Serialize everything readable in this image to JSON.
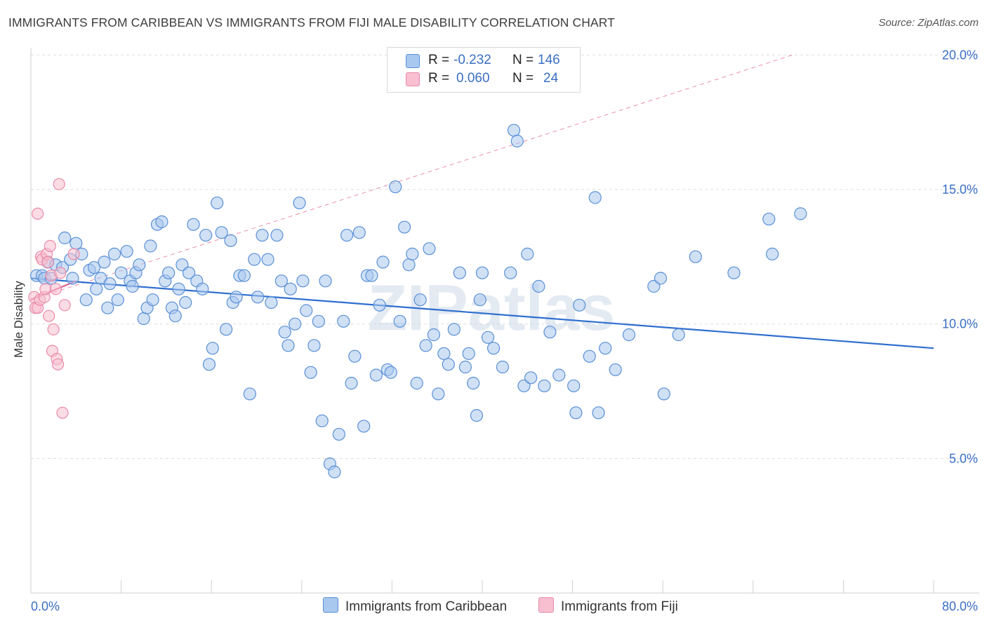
{
  "header": {
    "title": "IMMIGRANTS FROM CARIBBEAN VS IMMIGRANTS FROM FIJI MALE DISABILITY CORRELATION CHART",
    "source": "Source: ZipAtlas.com"
  },
  "legend": {
    "series": [
      {
        "r_label": "R =",
        "r_value": "-0.232",
        "n_label": "N =",
        "n_value": "146"
      },
      {
        "r_label": "R =",
        "r_value": "0.060",
        "n_label": "N =",
        "n_value": "24"
      }
    ]
  },
  "bottom_legend": [
    "Immigrants from Caribbean",
    "Immigrants from Fiji"
  ],
  "watermark": "ZIPatlas",
  "colors": {
    "caribbean_fill": "#a9c8ef",
    "caribbean_stroke": "#5a8fd6",
    "caribbean_line": "#2f6fcf",
    "fiji_fill": "#f7bfd0",
    "fiji_stroke": "#e98aa9",
    "fiji_line": "#e0608e",
    "axis_text": "#3a6fc4",
    "grid": "#dddddd"
  },
  "chart_data": {
    "type": "scatter",
    "ylabel": "Male Disability",
    "xlim": [
      0,
      80
    ],
    "ylim": [
      0,
      21
    ],
    "x_tick_labels": [
      {
        "value": 0,
        "label": "0.0%"
      },
      {
        "value": 80,
        "label": "80.0%"
      }
    ],
    "y_tick_labels": [
      {
        "value": 5,
        "label": "5.0%"
      },
      {
        "value": 10,
        "label": "10.0%"
      },
      {
        "value": 15,
        "label": "15.0%"
      },
      {
        "value": 20,
        "label": "20.0%"
      }
    ],
    "grid": "horizontal dashed",
    "series": [
      {
        "name": "Immigrants from Caribbean",
        "trend": {
          "x": [
            0,
            80
          ],
          "y": [
            11.7,
            9.1
          ]
        },
        "points": [
          [
            0.5,
            11.8
          ],
          [
            1.0,
            11.8
          ],
          [
            1.2,
            11.7
          ],
          [
            1.5,
            12.3
          ],
          [
            1.8,
            11.7
          ],
          [
            2.2,
            12.2
          ],
          [
            2.8,
            12.1
          ],
          [
            3.0,
            13.2
          ],
          [
            3.5,
            12.4
          ],
          [
            3.7,
            11.7
          ],
          [
            4.0,
            13.0
          ],
          [
            4.5,
            12.6
          ],
          [
            4.9,
            10.9
          ],
          [
            5.2,
            12.0
          ],
          [
            5.6,
            12.1
          ],
          [
            5.8,
            11.3
          ],
          [
            6.2,
            11.7
          ],
          [
            6.5,
            12.3
          ],
          [
            6.8,
            10.6
          ],
          [
            7.0,
            11.5
          ],
          [
            7.4,
            12.6
          ],
          [
            7.7,
            10.9
          ],
          [
            8.0,
            11.9
          ],
          [
            8.5,
            12.7
          ],
          [
            8.8,
            11.6
          ],
          [
            9.0,
            11.4
          ],
          [
            9.3,
            11.9
          ],
          [
            9.6,
            12.2
          ],
          [
            10.0,
            10.2
          ],
          [
            10.3,
            10.6
          ],
          [
            10.6,
            12.9
          ],
          [
            10.8,
            10.9
          ],
          [
            11.2,
            13.7
          ],
          [
            11.6,
            13.8
          ],
          [
            11.9,
            11.6
          ],
          [
            12.2,
            11.9
          ],
          [
            12.5,
            10.6
          ],
          [
            12.8,
            10.3
          ],
          [
            13.1,
            11.3
          ],
          [
            13.4,
            12.2
          ],
          [
            13.7,
            10.8
          ],
          [
            14.0,
            11.9
          ],
          [
            14.4,
            13.7
          ],
          [
            14.7,
            11.6
          ],
          [
            15.2,
            11.3
          ],
          [
            15.5,
            13.3
          ],
          [
            15.8,
            8.5
          ],
          [
            16.1,
            9.1
          ],
          [
            16.5,
            14.5
          ],
          [
            16.9,
            13.4
          ],
          [
            17.3,
            9.8
          ],
          [
            17.7,
            13.1
          ],
          [
            17.9,
            10.8
          ],
          [
            18.2,
            11.0
          ],
          [
            18.5,
            11.8
          ],
          [
            18.9,
            11.8
          ],
          [
            19.4,
            7.4
          ],
          [
            19.8,
            12.4
          ],
          [
            20.1,
            11.0
          ],
          [
            20.5,
            13.3
          ],
          [
            21.0,
            12.4
          ],
          [
            21.3,
            10.8
          ],
          [
            21.8,
            13.3
          ],
          [
            22.2,
            11.6
          ],
          [
            22.5,
            9.7
          ],
          [
            22.8,
            9.2
          ],
          [
            23.0,
            11.3
          ],
          [
            23.4,
            10.0
          ],
          [
            23.8,
            14.5
          ],
          [
            24.1,
            11.6
          ],
          [
            24.4,
            10.5
          ],
          [
            24.8,
            8.2
          ],
          [
            25.1,
            9.2
          ],
          [
            25.5,
            10.1
          ],
          [
            25.8,
            6.4
          ],
          [
            26.1,
            11.6
          ],
          [
            26.5,
            4.8
          ],
          [
            26.9,
            4.5
          ],
          [
            27.3,
            5.9
          ],
          [
            27.7,
            10.1
          ],
          [
            28.0,
            13.3
          ],
          [
            28.4,
            7.8
          ],
          [
            28.7,
            8.8
          ],
          [
            29.1,
            13.4
          ],
          [
            29.5,
            6.2
          ],
          [
            29.8,
            11.8
          ],
          [
            30.2,
            11.8
          ],
          [
            30.6,
            8.1
          ],
          [
            30.9,
            10.7
          ],
          [
            31.2,
            12.3
          ],
          [
            31.6,
            8.3
          ],
          [
            31.9,
            8.2
          ],
          [
            32.3,
            15.1
          ],
          [
            32.7,
            10.1
          ],
          [
            33.1,
            13.6
          ],
          [
            33.5,
            12.2
          ],
          [
            33.8,
            12.6
          ],
          [
            34.2,
            7.8
          ],
          [
            34.5,
            10.9
          ],
          [
            35.0,
            9.2
          ],
          [
            35.3,
            12.8
          ],
          [
            35.7,
            9.6
          ],
          [
            36.1,
            7.4
          ],
          [
            36.6,
            8.9
          ],
          [
            37.0,
            8.5
          ],
          [
            37.5,
            9.8
          ],
          [
            38.0,
            11.9
          ],
          [
            38.5,
            8.4
          ],
          [
            38.8,
            8.9
          ],
          [
            39.2,
            7.8
          ],
          [
            39.5,
            6.6
          ],
          [
            39.8,
            10.9
          ],
          [
            40.0,
            11.9
          ],
          [
            40.5,
            9.5
          ],
          [
            41.0,
            9.1
          ],
          [
            41.8,
            8.4
          ],
          [
            42.5,
            11.9
          ],
          [
            42.8,
            17.2
          ],
          [
            43.1,
            16.8
          ],
          [
            43.7,
            7.7
          ],
          [
            44.0,
            12.6
          ],
          [
            44.3,
            8.0
          ],
          [
            45.0,
            11.4
          ],
          [
            45.5,
            7.7
          ],
          [
            46.0,
            9.7
          ],
          [
            46.8,
            8.1
          ],
          [
            48.1,
            7.7
          ],
          [
            48.3,
            6.7
          ],
          [
            48.6,
            10.7
          ],
          [
            49.5,
            8.8
          ],
          [
            50.0,
            14.7
          ],
          [
            50.3,
            6.7
          ],
          [
            50.9,
            9.1
          ],
          [
            51.8,
            8.3
          ],
          [
            53.0,
            9.6
          ],
          [
            55.2,
            11.4
          ],
          [
            55.8,
            11.7
          ],
          [
            56.1,
            7.4
          ],
          [
            57.4,
            9.6
          ],
          [
            58.9,
            12.5
          ],
          [
            62.3,
            11.9
          ],
          [
            65.4,
            13.9
          ],
          [
            65.7,
            12.6
          ],
          [
            68.2,
            14.1
          ]
        ]
      },
      {
        "name": "Immigrants from Fiji",
        "trend": {
          "x": [
            0,
            4.0
          ],
          "y": [
            10.9,
            11.6
          ]
        },
        "trend_extended": {
          "x": [
            0,
            67.5
          ],
          "y": [
            10.9,
            20.0
          ]
        },
        "points": [
          [
            0.3,
            11.0
          ],
          [
            0.4,
            10.6
          ],
          [
            0.6,
            10.6
          ],
          [
            0.8,
            10.9
          ],
          [
            0.9,
            12.5
          ],
          [
            1.0,
            12.4
          ],
          [
            1.2,
            11.0
          ],
          [
            1.3,
            11.3
          ],
          [
            1.4,
            12.6
          ],
          [
            1.5,
            12.3
          ],
          [
            1.6,
            10.3
          ],
          [
            1.7,
            12.9
          ],
          [
            1.8,
            11.8
          ],
          [
            1.9,
            9.0
          ],
          [
            2.0,
            9.8
          ],
          [
            2.2,
            11.3
          ],
          [
            2.3,
            8.7
          ],
          [
            2.4,
            8.5
          ],
          [
            2.5,
            15.2
          ],
          [
            2.6,
            11.9
          ],
          [
            2.8,
            6.7
          ],
          [
            3.0,
            10.7
          ],
          [
            3.8,
            12.6
          ],
          [
            0.6,
            14.1
          ]
        ]
      }
    ]
  }
}
